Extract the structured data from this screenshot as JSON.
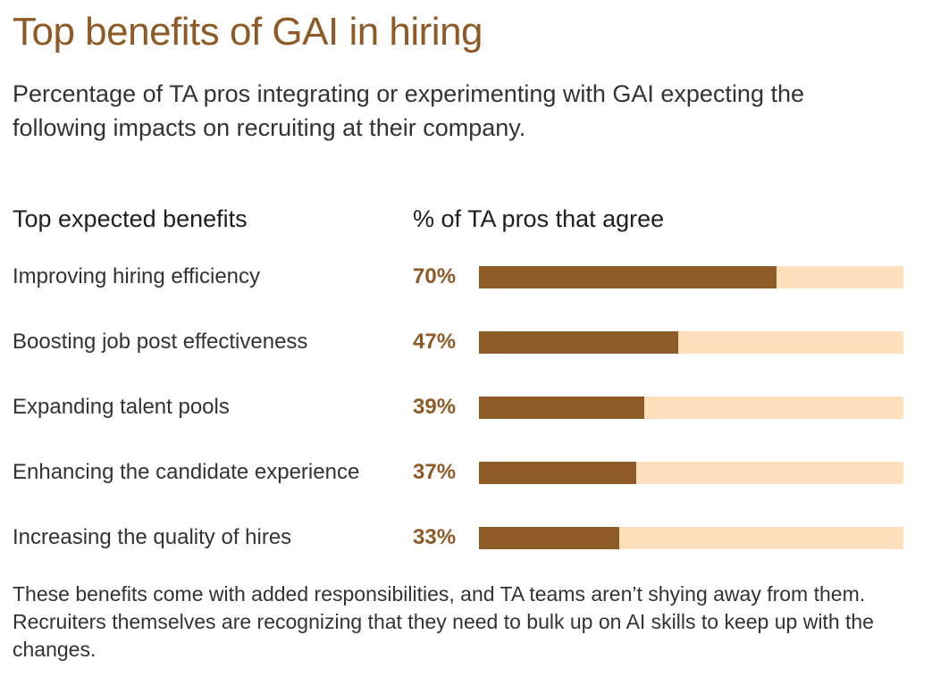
{
  "title": "Top benefits of GAI in hiring",
  "subtitle": "Percentage of TA pros integrating or experimenting with GAI expecting the following impacts on recruiting at their company.",
  "headers": {
    "left": "Top expected benefits",
    "right": "% of TA pros that agree"
  },
  "footnote": "These benefits come with added responsibilities, and TA teams aren’t shying away from them. Recruiters themselves are recognizing that they need to bulk up on AI skills to keep up with the changes.",
  "colors": {
    "accent": "#8e5b27",
    "track": "#fde0bb"
  },
  "chart_data": {
    "type": "bar",
    "orientation": "horizontal",
    "categories": [
      "Improving hiring efficiency",
      "Boosting job post effectiveness",
      "Expanding talent pools",
      "Enhancing the candidate experience",
      "Increasing the quality of hires"
    ],
    "values": [
      70,
      47,
      39,
      37,
      33
    ],
    "value_labels": [
      "70%",
      "47%",
      "39%",
      "37%",
      "33%"
    ],
    "xlim": [
      0,
      100
    ],
    "grid": false,
    "legend": "none"
  }
}
